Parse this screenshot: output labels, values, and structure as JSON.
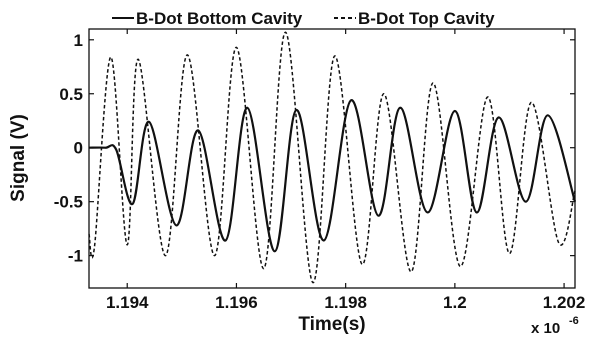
{
  "chart_data": {
    "type": "line",
    "xlabel": "Time(s)",
    "ylabel": "Signal (V)",
    "x_multiplier_label": "x 10",
    "x_multiplier_exponent": "-6",
    "xlim": [
      1.1933,
      1.2022
    ],
    "ylim": [
      -1.3,
      1.1
    ],
    "x_ticks": [
      1.194,
      1.196,
      1.198,
      1.2,
      1.202
    ],
    "x_tick_labels": [
      "1.194",
      "1.196",
      "1.198",
      "1.2",
      "1.202"
    ],
    "y_ticks": [
      -1,
      -0.5,
      0,
      0.5,
      1
    ],
    "y_tick_labels": [
      "-1",
      "-0.5",
      "0",
      "0.5",
      "1"
    ],
    "grid": false,
    "legend_position": "top",
    "series": [
      {
        "name": "B-Dot Bottom Cavity",
        "line_style": "solid",
        "x": [
          1.1933,
          1.1936,
          1.1938,
          1.1941,
          1.1944,
          1.1949,
          1.1953,
          1.1958,
          1.1962,
          1.1967,
          1.1971,
          1.1976,
          1.1981,
          1.1986,
          1.199,
          1.1995,
          1.2,
          1.2004,
          1.2008,
          1.2013,
          1.2017,
          1.2022
        ],
        "y": [
          0.0,
          0.0,
          -0.02,
          -0.52,
          0.24,
          -0.72,
          0.16,
          -0.86,
          0.37,
          -0.96,
          0.35,
          -0.86,
          0.44,
          -0.63,
          0.37,
          -0.6,
          0.34,
          -0.6,
          0.28,
          -0.5,
          0.3,
          -0.5
        ]
      },
      {
        "name": "B-Dot Top Cavity",
        "line_style": "dashed",
        "x": [
          1.1933,
          1.1934,
          1.1937,
          1.194,
          1.1942,
          1.1947,
          1.1951,
          1.1956,
          1.196,
          1.1965,
          1.1969,
          1.1974,
          1.1978,
          1.1983,
          1.1987,
          1.1992,
          1.1996,
          1.2001,
          1.2006,
          1.201,
          1.2014,
          1.2019,
          1.2022
        ],
        "y": [
          -0.8,
          -0.92,
          0.84,
          -0.9,
          0.82,
          -1.0,
          0.86,
          -1.0,
          0.93,
          -1.12,
          1.07,
          -1.25,
          0.85,
          -1.08,
          0.5,
          -1.15,
          0.6,
          -1.1,
          0.47,
          -0.98,
          0.42,
          -0.88,
          -0.4
        ]
      }
    ]
  }
}
